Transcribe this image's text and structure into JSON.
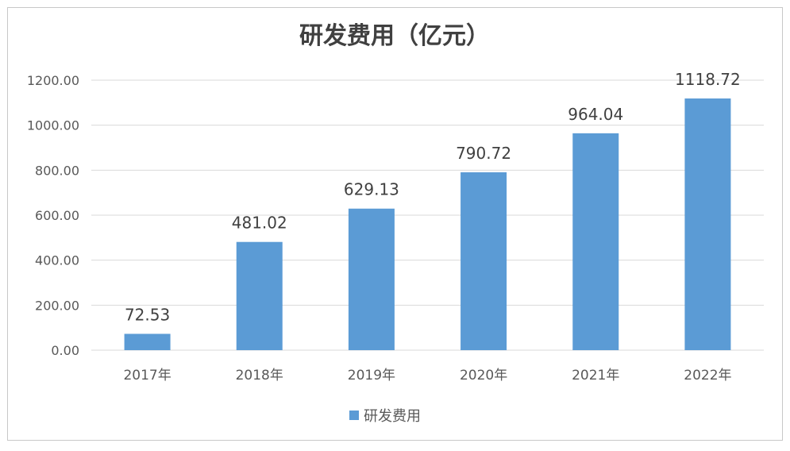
{
  "chart_data": {
    "type": "bar",
    "title": "研发费用（亿元）",
    "categories": [
      "2017年",
      "2018年",
      "2019年",
      "2020年",
      "2021年",
      "2022年"
    ],
    "series": [
      {
        "name": "研发费用",
        "values": [
          72.53,
          481.02,
          629.13,
          790.72,
          964.04,
          1118.72
        ],
        "data_labels": [
          "72.53",
          "481.02",
          "629.13",
          "790.72",
          "964.04",
          "1118.72"
        ],
        "color": "#5B9BD5"
      }
    ],
    "y_ticks": [
      "0.00",
      "200.00",
      "400.00",
      "600.00",
      "800.00",
      "1000.00",
      "1200.00"
    ],
    "ylim": [
      0,
      1200
    ],
    "grid": true,
    "legend": "bottom"
  }
}
